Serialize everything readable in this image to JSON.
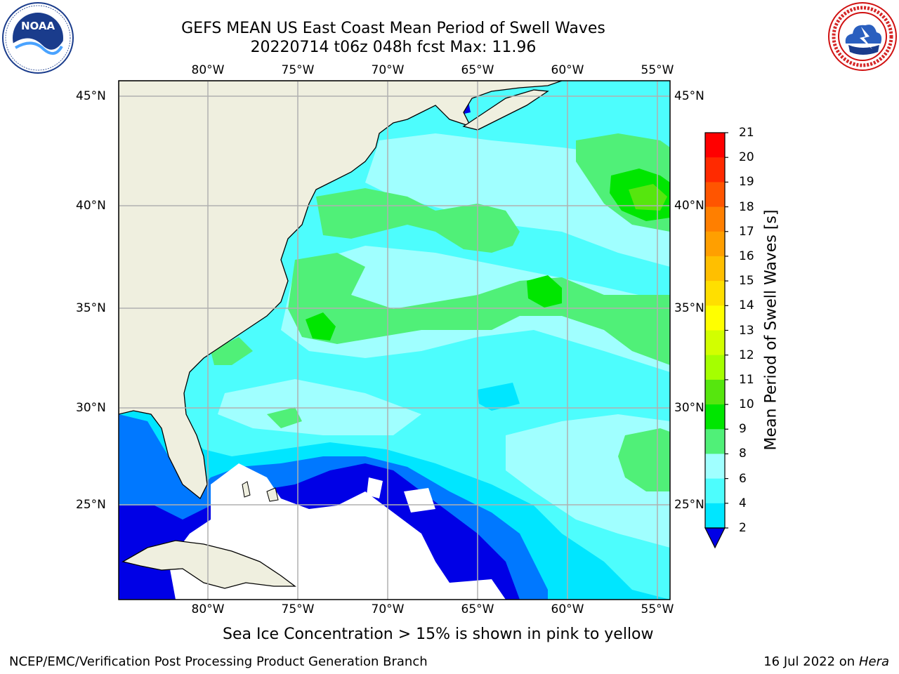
{
  "title_line1": "GEFS MEAN US East Coast Mean Period of Swell Waves",
  "title_line2": "20220714 t06z 048h fcst   Max: 11.96",
  "logos": {
    "noaa_text": "NOAA",
    "noaa_ring_text": "NATIONAL OCEANIC AND ATMOSPHERIC ADMINISTRATION · U.S. DEPARTMENT OF COMMERCE",
    "nws_ring_text": "NATIONAL WEATHER SERVICE"
  },
  "longitude_ticks": [
    "80°W",
    "75°W",
    "70°W",
    "65°W",
    "60°W",
    "55°W"
  ],
  "latitude_ticks": [
    "45°N",
    "40°N",
    "35°N",
    "30°N",
    "25°N"
  ],
  "colorbar": {
    "label": "Mean Period of Swell Waves [s]",
    "tick_labels": [
      "21",
      "20",
      "19",
      "18",
      "17",
      "16",
      "15",
      "14",
      "13",
      "12",
      "11",
      "10",
      "9",
      "8",
      "6",
      "4",
      "2"
    ],
    "colors": [
      "#ff0000",
      "#ff2a00",
      "#ff5500",
      "#ff7f00",
      "#ff9f00",
      "#ffbf00",
      "#ffdf00",
      "#ffff00",
      "#d2ff00",
      "#a5ff00",
      "#56e60e",
      "#00e600",
      "#50f078",
      "#a0ffff",
      "#4dfdfd",
      "#00e6ff",
      "#0078ff",
      "#0000e6"
    ],
    "extend_color": "#0000e6"
  },
  "colors": {
    "land": "#efefdf",
    "grid": "#b0b0b0",
    "missing": "#ffffff",
    "cyan_8": "#4dfdfd",
    "light_cyan_9": "#a0ffff",
    "green_10": "#50f078",
    "green_11": "#00e600",
    "green_12": "#56e60e",
    "blue_6": "#00e6ff",
    "blue_4": "#0078ff",
    "blue_2": "#0000e6"
  },
  "ice_note": "Sea Ice Concentration > 15% is shown in pink to yellow",
  "footer_left": "NCEP/EMC/Verification Post Processing Product Generation Branch",
  "footer_date": "16 Jul 2022 on ",
  "footer_machine": "Hera"
}
